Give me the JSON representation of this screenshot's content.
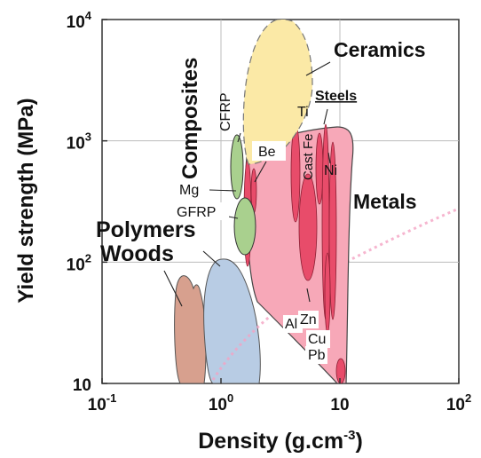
{
  "chart_data": {
    "type": "scatter",
    "subtype": "material-property-chart",
    "xlabel": "Density (g.cm",
    "xlabel_sup": "-3",
    "xlabel_close": ")",
    "ylabel": "Yield strength (MPa)",
    "x_scale": "log",
    "y_scale": "log",
    "xlim": [
      0.1,
      100
    ],
    "ylim": [
      10,
      10000
    ],
    "x_ticks": [
      {
        "value": 0.1,
        "base": "10",
        "exp": "-1"
      },
      {
        "value": 1,
        "base": "10",
        "exp": "0"
      },
      {
        "value": 10,
        "base": "10",
        "exp": ""
      },
      {
        "value": 100,
        "base": "10",
        "exp": "2"
      }
    ],
    "y_ticks": [
      {
        "value": 10,
        "base": "10",
        "exp": ""
      },
      {
        "value": 100,
        "base": "10",
        "exp": "2"
      },
      {
        "value": 1000,
        "base": "10",
        "exp": "3"
      },
      {
        "value": 10000,
        "base": "10",
        "exp": "4"
      }
    ],
    "grid": true,
    "families": [
      {
        "label": "Ceramics",
        "color": "#fbe9a6"
      },
      {
        "label": "Composites",
        "color": "#a9d08e"
      },
      {
        "label": "Metals",
        "color": "#f7a8b8"
      },
      {
        "label": "Polymers",
        "color": "#b8cce4"
      },
      {
        "label": "Woods",
        "color": "#d7a08e"
      }
    ],
    "annotations": [
      "CFRP",
      "GFRP",
      "Mg",
      "Be",
      "Ti",
      "Steels",
      "Cast Fe",
      "Ni",
      "Zn",
      "Al",
      "Cu",
      "Pb"
    ]
  }
}
